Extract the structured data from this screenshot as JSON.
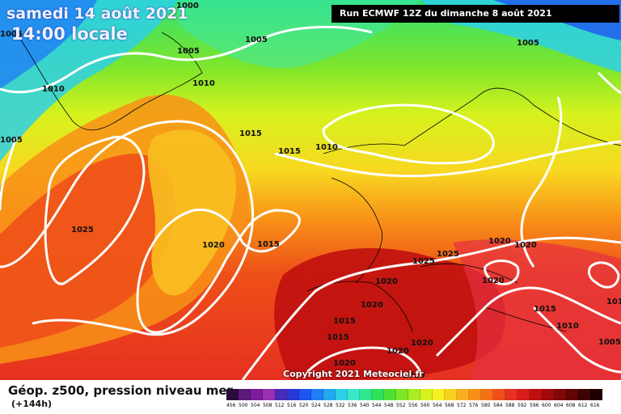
{
  "header": {
    "date": "samedi 14 août 2021",
    "time": "14:00 locale",
    "run": "Run ECMWF 12Z du dimanche 8 août 2021"
  },
  "copyright": "Copyright 2021 Meteociel.fr",
  "legend": {
    "title": "Géop. z500, pression niveau mer",
    "subtitle": "(+144h)",
    "ticks": [
      "456",
      "500",
      "504",
      "508",
      "512",
      "516",
      "520",
      "524",
      "528",
      "532",
      "536",
      "540",
      "544",
      "548",
      "552",
      "556",
      "560",
      "564",
      "568",
      "572",
      "576",
      "580",
      "584",
      "588",
      "592",
      "596",
      "600",
      "604",
      "608",
      "612",
      "616"
    ],
    "colors": [
      "#2d0a3c",
      "#5b1a7a",
      "#7a1d9a",
      "#9a2fb5",
      "#4a2ab8",
      "#2a38d8",
      "#1f55f0",
      "#1f80f5",
      "#22a8f0",
      "#2ed0e8",
      "#3ae8c8",
      "#2ee890",
      "#33e05a",
      "#4ee030",
      "#7de628",
      "#a8ee22",
      "#d6f21e",
      "#f8f020",
      "#f8d020",
      "#f8b020",
      "#f89018",
      "#f47018",
      "#ee5018",
      "#e63020",
      "#d81c1c",
      "#c01010",
      "#a00a0a",
      "#800808",
      "#600404",
      "#400202",
      "#200000"
    ]
  },
  "isobars": {
    "labels": [
      "1000",
      "1005",
      "1005",
      "1005",
      "1005",
      "1005",
      "1010",
      "1010",
      "1010",
      "1015",
      "1015",
      "1015",
      "1015",
      "1015",
      "1020",
      "1020",
      "1020",
      "1020",
      "1020",
      "1020",
      "1020",
      "1020",
      "1020",
      "1025",
      "1025",
      "1015",
      "1010",
      "1005",
      "1015",
      "1010",
      "1015"
    ]
  }
}
